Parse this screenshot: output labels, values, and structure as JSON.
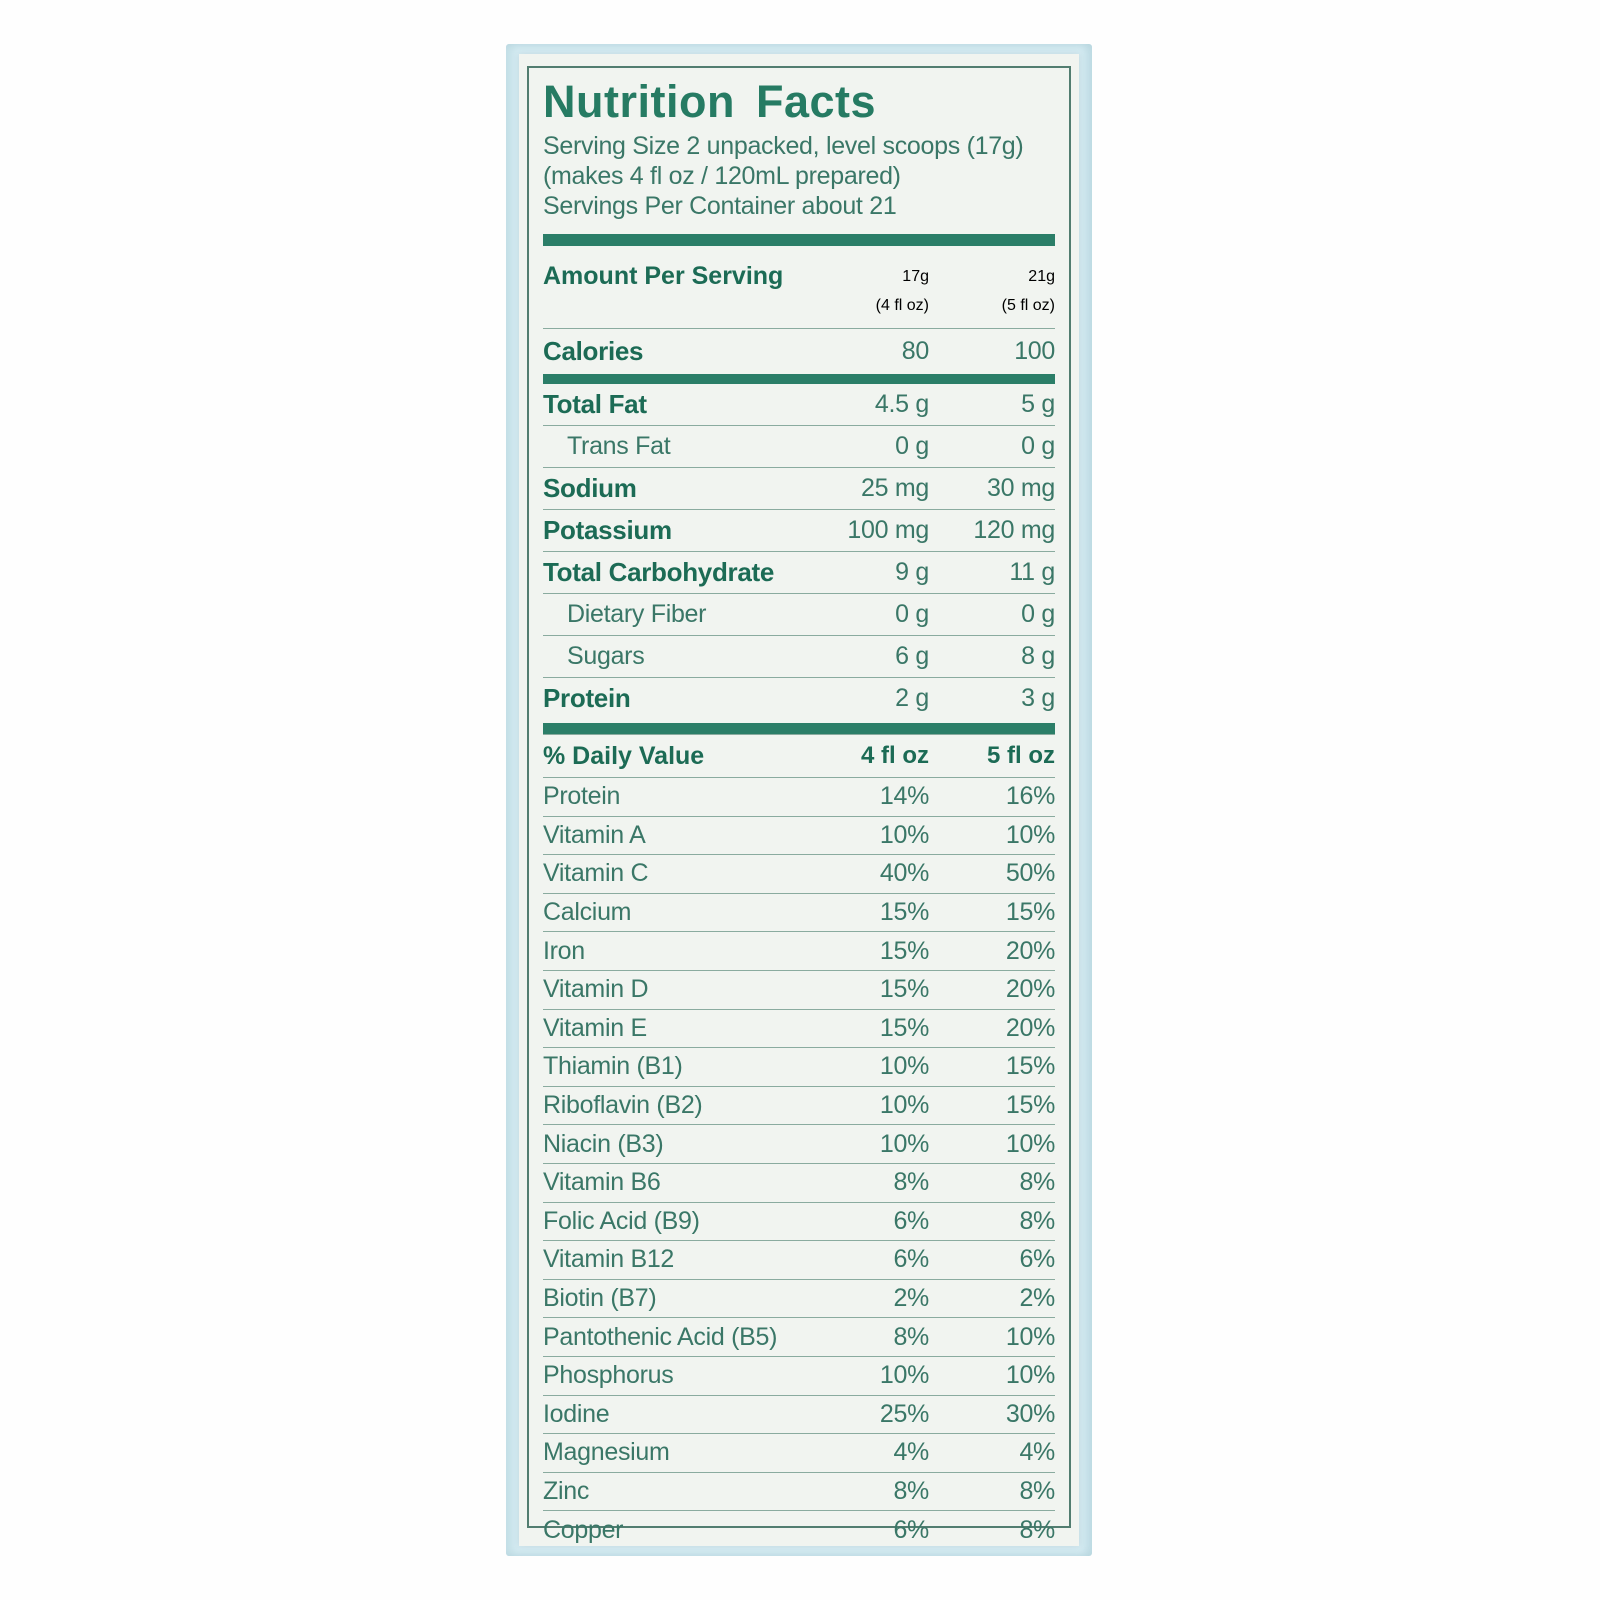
{
  "colors": {
    "green_title": "#267b63",
    "green_bold": "#1c6b55",
    "green_text": "#3a7767",
    "bar_green": "#2b7e68",
    "thin_rule": "#8aab9f",
    "border_green": "#527d70",
    "paper": "#f1f4f0",
    "packaging_blue": "#d4ebf2",
    "page_background": "#fefefe"
  },
  "header": {
    "title": "Nutrition Facts",
    "serving_lines": [
      "Serving Size 2 unpacked, level scoops (17g)",
      "(makes 4 fl oz / 120mL prepared)",
      "Servings Per Container about 21"
    ]
  },
  "amount_section": {
    "header": {
      "label": "Amount Per Serving",
      "col1_value": "17g",
      "col1_unit": "(4 fl oz)",
      "col2_value": "21g",
      "col2_unit": "(5 fl oz)"
    },
    "calories_row": {
      "label": "Calories",
      "col1": "80",
      "col2": "100"
    },
    "rows": [
      {
        "label": "Total Fat",
        "style": "bold",
        "col1": "4.5 g",
        "col2": "5 g"
      },
      {
        "label": "Trans Fat",
        "style": "indent",
        "col1": "0 g",
        "col2": "0 g"
      },
      {
        "label": "Sodium",
        "style": "bold",
        "col1": "25 mg",
        "col2": "30 mg"
      },
      {
        "label": "Potassium",
        "style": "bold",
        "col1": "100 mg",
        "col2": "120 mg"
      },
      {
        "label": "Total Carbohydrate",
        "style": "bold",
        "col1": "9 g",
        "col2": "11 g"
      },
      {
        "label": "Dietary Fiber",
        "style": "indent",
        "col1": "0 g",
        "col2": "0 g"
      },
      {
        "label": "Sugars",
        "style": "indent",
        "col1": "6 g",
        "col2": "8 g"
      },
      {
        "label": "Protein",
        "style": "bold",
        "col1": "2 g",
        "col2": "3 g"
      }
    ]
  },
  "dv_section": {
    "header": {
      "label": "% Daily Value",
      "col1": "4 fl oz",
      "col2": "5 fl oz"
    },
    "rows": [
      {
        "label": "Protein",
        "col1": "14%",
        "col2": "16%"
      },
      {
        "label": "Vitamin A",
        "col1": "10%",
        "col2": "10%"
      },
      {
        "label": "Vitamin C",
        "col1": "40%",
        "col2": "50%"
      },
      {
        "label": "Calcium",
        "col1": "15%",
        "col2": "15%"
      },
      {
        "label": "Iron",
        "col1": "15%",
        "col2": "20%"
      },
      {
        "label": "Vitamin D",
        "col1": "15%",
        "col2": "20%"
      },
      {
        "label": "Vitamin E",
        "col1": "15%",
        "col2": "20%"
      },
      {
        "label": "Thiamin (B1)",
        "col1": "10%",
        "col2": "15%"
      },
      {
        "label": "Riboflavin (B2)",
        "col1": "10%",
        "col2": "15%"
      },
      {
        "label": "Niacin (B3)",
        "col1": "10%",
        "col2": "10%"
      },
      {
        "label": "Vitamin B6",
        "col1": "8%",
        "col2": "8%"
      },
      {
        "label": "Folic Acid (B9)",
        "col1": "6%",
        "col2": "8%"
      },
      {
        "label": "Vitamin B12",
        "col1": "6%",
        "col2": "6%"
      },
      {
        "label": "Biotin (B7)",
        "col1": "2%",
        "col2": "2%"
      },
      {
        "label": "Pantothenic Acid (B5)",
        "col1": "8%",
        "col2": "10%"
      },
      {
        "label": "Phosphorus",
        "col1": "10%",
        "col2": "10%"
      },
      {
        "label": "Iodine",
        "col1": "25%",
        "col2": "30%"
      },
      {
        "label": "Magnesium",
        "col1": "4%",
        "col2": "4%"
      },
      {
        "label": "Zinc",
        "col1": "8%",
        "col2": "8%"
      },
      {
        "label": "Copper",
        "col1": "6%",
        "col2": "8%"
      }
    ]
  }
}
